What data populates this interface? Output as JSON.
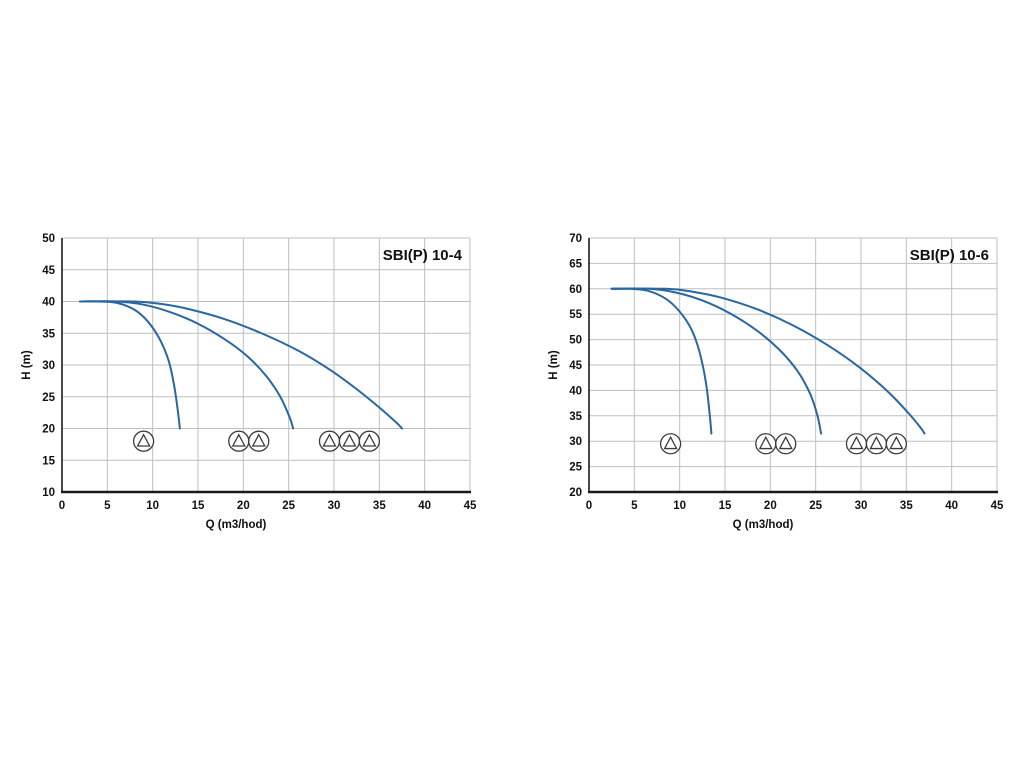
{
  "page": {
    "background": "#ffffff",
    "grid_color": "#bfbfbf",
    "axis_color": "#1a1a1a",
    "tick_color": "#111111",
    "curve_color": "#2867a0",
    "icon_stroke": "#3c3c3c"
  },
  "chart_data": [
    {
      "type": "line",
      "title": "SBI(P) 10-4",
      "xlabel": "Q (m3/hod)",
      "ylabel": "H (m)",
      "xlim": [
        0,
        45
      ],
      "ylim": [
        10,
        50
      ],
      "xticks": [
        0,
        5,
        10,
        15,
        20,
        25,
        30,
        35,
        40,
        45
      ],
      "yticks": [
        10,
        15,
        20,
        25,
        30,
        35,
        40,
        45,
        50
      ],
      "grid": true,
      "legend": "none",
      "series": [
        {
          "name": "1-pump",
          "points": [
            [
              2,
              40
            ],
            [
              4,
              40
            ],
            [
              6,
              39.8
            ],
            [
              8,
              38.7
            ],
            [
              9.5,
              36.8
            ],
            [
              10.8,
              34
            ],
            [
              11.8,
              30.5
            ],
            [
              12.4,
              26.5
            ],
            [
              12.8,
              22.5
            ],
            [
              13,
              20
            ]
          ]
        },
        {
          "name": "2-pumps",
          "points": [
            [
              2,
              40
            ],
            [
              6,
              40
            ],
            [
              9,
              39.5
            ],
            [
              12,
              38.3
            ],
            [
              15,
              36.5
            ],
            [
              18,
              34
            ],
            [
              20.5,
              31.3
            ],
            [
              22.5,
              28.3
            ],
            [
              24,
              25.2
            ],
            [
              25.1,
              21.8
            ],
            [
              25.5,
              20
            ]
          ]
        },
        {
          "name": "3-pumps",
          "points": [
            [
              2,
              40
            ],
            [
              8,
              40
            ],
            [
              11,
              39.6
            ],
            [
              14,
              38.8
            ],
            [
              18,
              37.2
            ],
            [
              22,
              35
            ],
            [
              26,
              32.3
            ],
            [
              29.5,
              29.3
            ],
            [
              32.5,
              26.2
            ],
            [
              35,
              23.3
            ],
            [
              36.9,
              20.9
            ],
            [
              37.5,
              20
            ]
          ]
        }
      ],
      "pump_icons": {
        "h": 18,
        "groups": [
          [
            9
          ],
          [
            19.5,
            21.7
          ],
          [
            29.5,
            31.7,
            33.9
          ]
        ]
      }
    },
    {
      "type": "line",
      "title": "SBI(P) 10-6",
      "xlabel": "Q (m3/hod)",
      "ylabel": "H (m)",
      "xlim": [
        0,
        45
      ],
      "ylim": [
        20,
        70
      ],
      "xticks": [
        0,
        5,
        10,
        15,
        20,
        25,
        30,
        35,
        40,
        45
      ],
      "yticks": [
        20,
        25,
        30,
        35,
        40,
        45,
        50,
        55,
        60,
        65,
        70
      ],
      "grid": true,
      "legend": "none",
      "series": [
        {
          "name": "1-pump",
          "points": [
            [
              2.5,
              60
            ],
            [
              4.5,
              60
            ],
            [
              6.5,
              59.6
            ],
            [
              8.5,
              58
            ],
            [
              10,
              55.5
            ],
            [
              11.3,
              52
            ],
            [
              12.2,
              47.5
            ],
            [
              12.9,
              41.5
            ],
            [
              13.3,
              35.5
            ],
            [
              13.5,
              31.5
            ]
          ]
        },
        {
          "name": "2-pumps",
          "points": [
            [
              2.5,
              60
            ],
            [
              6.5,
              60
            ],
            [
              9.5,
              59.3
            ],
            [
              12.5,
              57.7
            ],
            [
              15.5,
              55.2
            ],
            [
              18.5,
              51.8
            ],
            [
              21,
              48
            ],
            [
              23,
              43.8
            ],
            [
              24.4,
              39.3
            ],
            [
              25.2,
              35
            ],
            [
              25.6,
              31.5
            ]
          ]
        },
        {
          "name": "3-pumps",
          "points": [
            [
              2.5,
              60
            ],
            [
              8.5,
              60
            ],
            [
              11.5,
              59.4
            ],
            [
              14.5,
              58.3
            ],
            [
              18.5,
              56
            ],
            [
              22.5,
              52.8
            ],
            [
              26.5,
              48.7
            ],
            [
              30,
              44.3
            ],
            [
              33,
              39.7
            ],
            [
              35.2,
              35.6
            ],
            [
              36.6,
              32.6
            ],
            [
              37,
              31.5
            ]
          ]
        }
      ],
      "pump_icons": {
        "h": 29.5,
        "groups": [
          [
            9
          ],
          [
            19.5,
            21.7
          ],
          [
            29.5,
            31.7,
            33.9
          ]
        ]
      }
    }
  ]
}
